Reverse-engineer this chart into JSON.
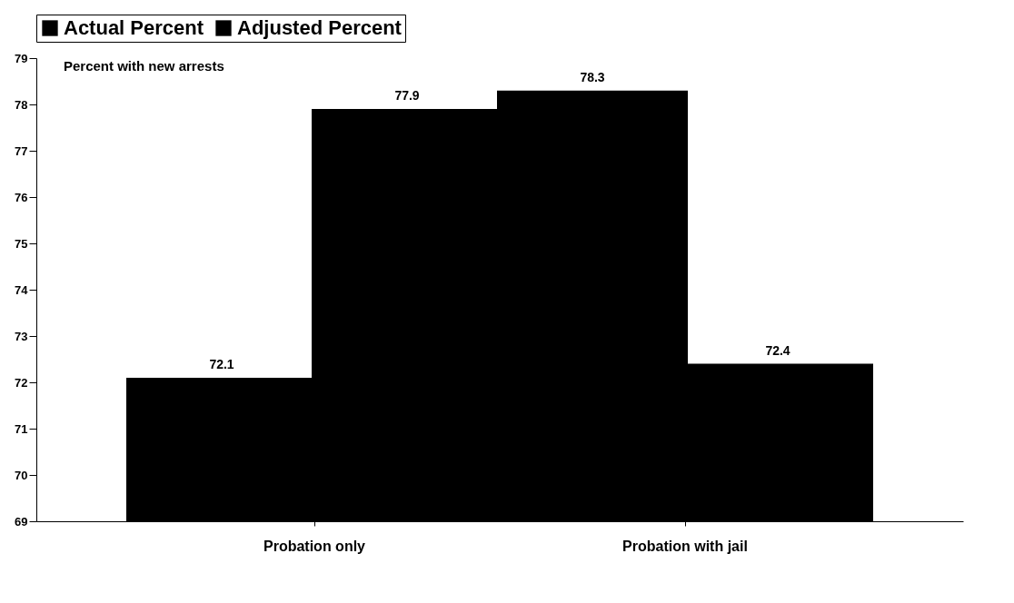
{
  "chart_data": {
    "type": "bar",
    "categories": [
      "Probation only",
      "Probation with jail"
    ],
    "series": [
      {
        "name": "Actual Percent",
        "color": "#000000",
        "values": [
          72.1,
          78.3
        ]
      },
      {
        "name": "Adjusted Percent",
        "color": "#000000",
        "values": [
          77.9,
          72.4
        ]
      }
    ],
    "ylim": [
      69,
      79
    ],
    "yticks": [
      69,
      70,
      71,
      72,
      73,
      74,
      75,
      76,
      77,
      78,
      79
    ],
    "annotations": [
      "Percent with new arrests"
    ],
    "data_labels": true,
    "legend": "top",
    "grid": false
  }
}
